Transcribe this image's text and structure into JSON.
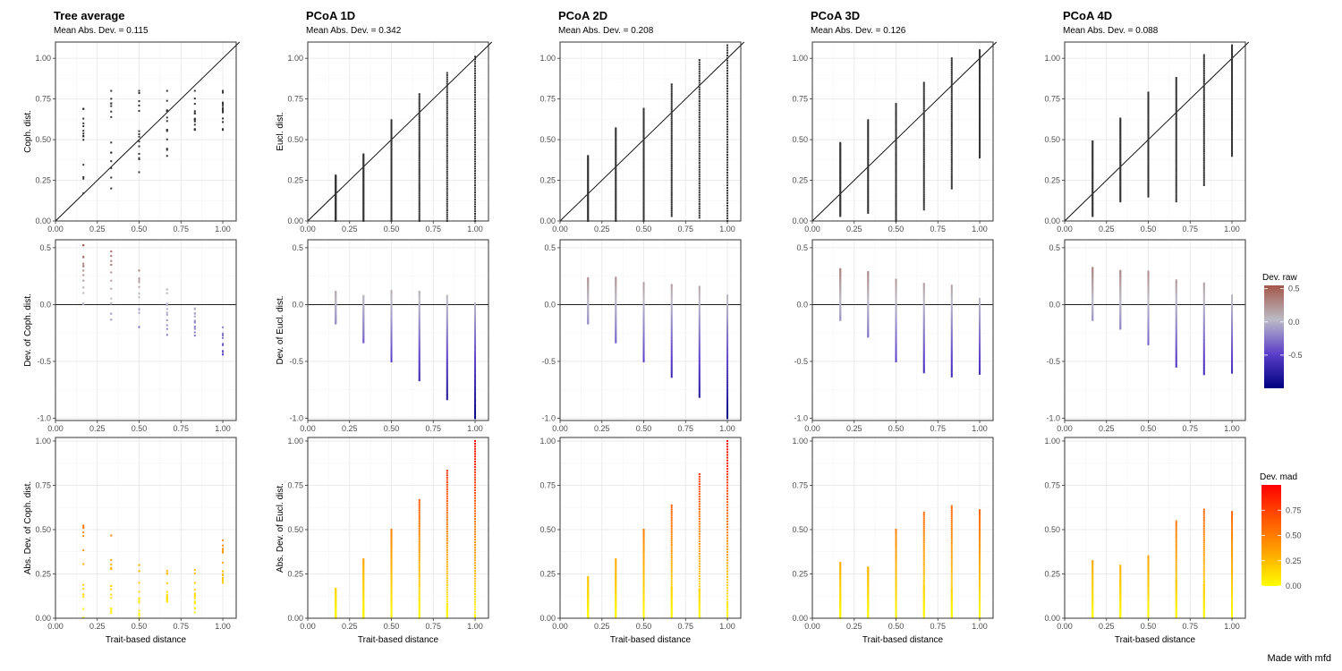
{
  "footer": {
    "credit": "Made with mfd"
  },
  "legends": {
    "raw": {
      "title": "Dev. raw",
      "ticks": [
        "0.5",
        "0.0",
        "-0.5"
      ],
      "tick_values": [
        0.5,
        0.0,
        -0.5
      ],
      "range": [
        -1,
        0.55
      ],
      "colors": [
        "#000080",
        "#5b3fc9",
        "#bbbbc6",
        "#a2574a"
      ]
    },
    "mad": {
      "title": "Dev. mad",
      "ticks": [
        "0.75",
        "0.50",
        "0.25",
        "0.00"
      ],
      "tick_values": [
        0.75,
        0.5,
        0.25,
        0.0
      ],
      "range": [
        0,
        1
      ],
      "colors": [
        "#ffff00",
        "#ffa500",
        "#ff5500",
        "#ff0000"
      ]
    }
  },
  "chart_data": [
    {
      "type": "scatter",
      "title": "Tree average",
      "subtitle": "Mean Abs. Dev. = 0.115",
      "ylabel_top": "Coph. dist.",
      "ylabel_mid": "Dev. of Coph. dist.",
      "ylabel_bot": "Abs. Dev. of Coph. dist.",
      "xlabel": "Trait-based distance",
      "show_xlabel": false,
      "x": [
        0.167,
        0.333,
        0.5,
        0.667,
        0.833,
        1.0
      ],
      "ymin": [
        0.17,
        0.2,
        0.3,
        0.4,
        0.56,
        0.56
      ],
      "ymax": [
        0.69,
        0.8,
        0.8,
        0.8,
        0.8,
        0.8
      ],
      "dense": false
    },
    {
      "type": "scatter",
      "title": "PCoA 1D",
      "subtitle": "Mean Abs. Dev. = 0.342",
      "ylabel_top": "Eucl. dist.",
      "ylabel_mid": "Dev. of Eucl. dist.",
      "ylabel_bot": "Abs. Dev. of Eucl. dist.",
      "xlabel": "Trait-based distance",
      "show_xlabel": true,
      "x": [
        0.167,
        0.333,
        0.5,
        0.667,
        0.833,
        1.0
      ],
      "ymin": [
        0.0,
        0.0,
        0.0,
        0.0,
        0.0,
        0.0
      ],
      "ymax": [
        0.28,
        0.41,
        0.62,
        0.78,
        0.91,
        1.01
      ],
      "dense": true
    },
    {
      "type": "scatter",
      "title": "PCoA 2D",
      "subtitle": "Mean Abs. Dev. = 0.208",
      "ylabel_top": "",
      "ylabel_mid": "",
      "ylabel_bot": "",
      "xlabel": "Trait-based distance",
      "show_xlabel": true,
      "x": [
        0.167,
        0.333,
        0.5,
        0.667,
        0.833,
        1.0
      ],
      "ymin": [
        0.0,
        0.0,
        0.0,
        0.03,
        0.02,
        0.0
      ],
      "ymax": [
        0.4,
        0.57,
        0.69,
        0.84,
        0.99,
        1.08
      ],
      "dense": true
    },
    {
      "type": "scatter",
      "title": "PCoA 3D",
      "subtitle": "Mean Abs. Dev. = 0.126",
      "ylabel_top": "",
      "ylabel_mid": "",
      "ylabel_bot": "",
      "xlabel": "Trait-based distance",
      "show_xlabel": true,
      "x": [
        0.167,
        0.333,
        0.5,
        0.667,
        0.833,
        1.0
      ],
      "ymin": [
        0.03,
        0.05,
        0.0,
        0.07,
        0.2,
        0.39
      ],
      "ymax": [
        0.48,
        0.62,
        0.72,
        0.85,
        1.0,
        1.05
      ],
      "dense": true
    },
    {
      "type": "scatter",
      "title": "PCoA 4D",
      "subtitle": "Mean Abs. Dev. = 0.088",
      "ylabel_top": "",
      "ylabel_mid": "",
      "ylabel_bot": "",
      "xlabel": "Trait-based distance",
      "show_xlabel": true,
      "x": [
        0.167,
        0.333,
        0.5,
        0.667,
        0.833,
        1.0
      ],
      "ymin": [
        0.03,
        0.12,
        0.15,
        0.12,
        0.22,
        0.4
      ],
      "ymax": [
        0.49,
        0.63,
        0.79,
        0.88,
        1.02,
        1.08
      ],
      "dense": true
    }
  ],
  "axes": {
    "x_ticks": [
      "0.00",
      "0.25",
      "0.50",
      "0.75",
      "1.00"
    ],
    "x_tick_values": [
      0,
      0.25,
      0.5,
      0.75,
      1.0
    ],
    "x_range": [
      0,
      1.08
    ],
    "top": {
      "ticks": [
        "0.00",
        "0.25",
        "0.50",
        "0.75",
        "1.00"
      ],
      "tick_values": [
        0,
        0.25,
        0.5,
        0.75,
        1.0
      ],
      "range": [
        0,
        1.1
      ]
    },
    "mid": {
      "ticks": [
        "-1.0",
        "-0.5",
        "0.0",
        "0.5"
      ],
      "tick_values": [
        -1.0,
        -0.5,
        0.0,
        0.5
      ],
      "range": [
        -1.02,
        0.57
      ]
    },
    "bot": {
      "ticks": [
        "0.00",
        "0.25",
        "0.50",
        "0.75",
        "1.00"
      ],
      "tick_values": [
        0,
        0.25,
        0.5,
        0.75,
        1.0
      ],
      "range": [
        0,
        1.02
      ]
    }
  }
}
